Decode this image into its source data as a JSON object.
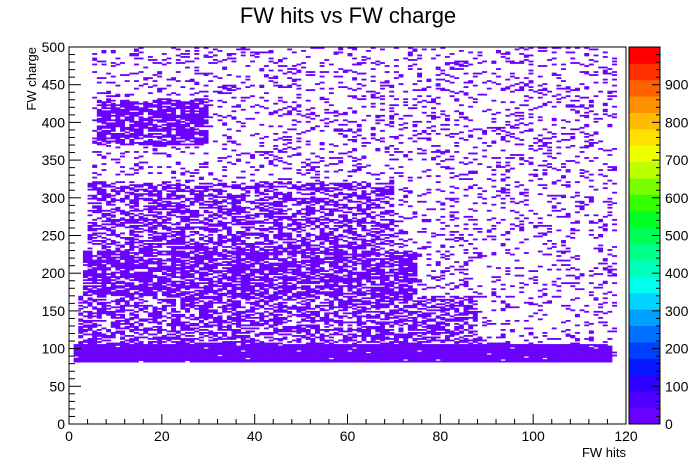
{
  "chart_data": {
    "type": "heatmap",
    "title": "FW hits vs FW charge",
    "xlabel": "FW hits",
    "ylabel": "FW charge",
    "xlim": [
      0,
      120
    ],
    "ylim": [
      0,
      500
    ],
    "x_ticks": [
      0,
      20,
      40,
      60,
      80,
      100,
      120
    ],
    "y_ticks": [
      0,
      50,
      100,
      150,
      200,
      250,
      300,
      350,
      400,
      450,
      500
    ],
    "z_ticks": [
      0,
      100,
      200,
      300,
      400,
      500,
      600,
      700,
      800,
      900
    ],
    "zlim": [
      0,
      1000
    ],
    "grid": false,
    "legend": "none",
    "palette": [
      "#6a00ff",
      "#4f00ff",
      "#2f00ff",
      "#0a18ff",
      "#0040ff",
      "#0070ff",
      "#00a0ff",
      "#00d4ff",
      "#00ffee",
      "#00ffbb",
      "#00ff88",
      "#00ff55",
      "#00ff22",
      "#33ff00",
      "#77ff00",
      "#bbff00",
      "#eeff00",
      "#ffe000",
      "#ffbb00",
      "#ff9000",
      "#ff6000",
      "#ff3000",
      "#ff0000"
    ],
    "regions": [
      {
        "x_range": [
          1,
          117
        ],
        "y_range": [
          81,
          105
        ],
        "density": 0.98,
        "description": "dense band"
      },
      {
        "x_range": [
          2,
          88
        ],
        "y_range": [
          105,
          170
        ],
        "density": 0.55
      },
      {
        "x_range": [
          3,
          75
        ],
        "y_range": [
          170,
          230
        ],
        "density": 0.72
      },
      {
        "x_range": [
          4,
          70
        ],
        "y_range": [
          230,
          320
        ],
        "density": 0.55
      },
      {
        "x_range": [
          6,
          30
        ],
        "y_range": [
          370,
          430
        ],
        "density": 0.75
      },
      {
        "x_range": [
          5,
          118
        ],
        "y_range": [
          81,
          500
        ],
        "density": 0.15
      }
    ]
  }
}
